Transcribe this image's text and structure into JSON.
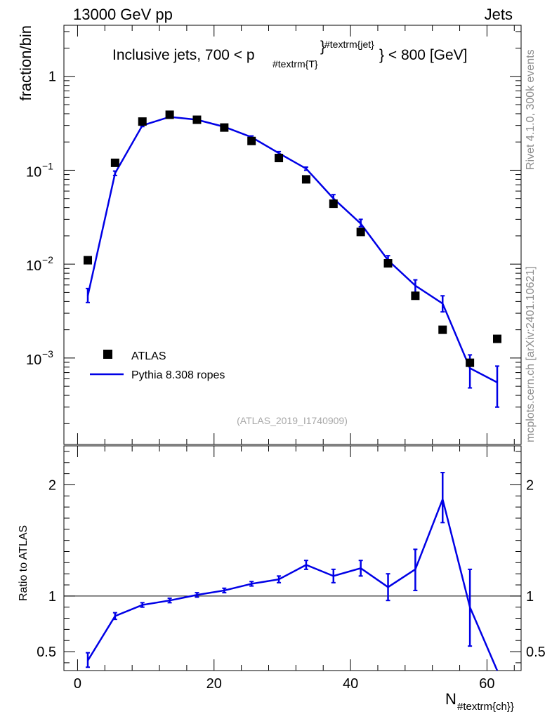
{
  "header": {
    "left": "13000 GeV pp",
    "right": "Jets"
  },
  "side_text": {
    "rivet": "Rivet 4.1.0,  300k events",
    "mcplots": "mcplots.cern.ch [arXiv:2401.10621]"
  },
  "colors": {
    "mc": "#0000e6",
    "data": "#000000",
    "watermark": "#a8a8a8"
  },
  "chart_data": [
    {
      "type": "scatter",
      "panel": "main",
      "title_parts": {
        "pre": "Inclusive jets, 700 < p",
        "sub": "#textrm{T}",
        "sup": "#textrm{jet}",
        "post": "} < 800 [GeV]"
      },
      "ylabel": "fraction/bin",
      "yscale": "log",
      "ylim": [
        0.00012,
        3.5
      ],
      "xlim": [
        -2,
        65
      ],
      "y_tick_labels": [
        "1",
        "10",
        "10",
        "10"
      ],
      "y_tick_exponents": [
        "",
        "−1",
        "−2",
        "−3"
      ],
      "watermark": "(ATLAS_2019_I1740909)",
      "legend": {
        "placement": "bottom-left",
        "data_label": "ATLAS",
        "mc_label": "Pythia 8.308 ropes"
      },
      "series": [
        {
          "name": "ATLAS",
          "style": "markers",
          "x": [
            1.5,
            5.5,
            9.5,
            13.5,
            17.5,
            21.5,
            25.5,
            29.5,
            33.5,
            37.5,
            41.5,
            45.5,
            49.5,
            53.5,
            57.5,
            61.5
          ],
          "y": [
            0.011,
            0.12,
            0.33,
            0.39,
            0.345,
            0.285,
            0.205,
            0.135,
            0.08,
            0.044,
            0.022,
            0.0102,
            0.0046,
            0.002,
            0.00089,
            0.0016
          ]
        },
        {
          "name": "Pythia 8.308 ropes",
          "style": "line",
          "x": [
            1.5,
            5.5,
            9.5,
            13.5,
            17.5,
            21.5,
            25.5,
            29.5,
            33.5,
            37.5,
            41.5,
            45.5,
            49.5,
            53.5,
            57.5,
            61.5
          ],
          "y": [
            0.0046,
            0.093,
            0.3,
            0.37,
            0.345,
            0.29,
            0.225,
            0.152,
            0.104,
            0.05,
            0.027,
            0.011,
            0.0059,
            0.0038,
            0.00078,
            0.00055
          ],
          "err_lo": [
            0.0039,
            0.088,
            0.292,
            0.362,
            0.339,
            0.285,
            0.219,
            0.147,
            0.1,
            0.046,
            0.025,
            0.0097,
            0.005,
            0.0031,
            0.00048,
            0.0003
          ],
          "err_hi": [
            0.0055,
            0.098,
            0.308,
            0.378,
            0.352,
            0.295,
            0.232,
            0.158,
            0.108,
            0.055,
            0.03,
            0.0123,
            0.0068,
            0.0046,
            0.00108,
            0.00082
          ]
        }
      ]
    },
    {
      "type": "line",
      "panel": "ratio",
      "ylabel": "Ratio to ATLAS",
      "ylim": [
        0.33,
        2.35
      ],
      "xlim": [
        -2,
        65
      ],
      "reference_line": 1,
      "y_tick_labels": [
        "0.5",
        "1",
        "2"
      ],
      "x_tick_labels": [
        "0",
        "20",
        "40",
        "60"
      ],
      "xlabel": {
        "main": "N",
        "sub": "#textrm{ch}}"
      },
      "series": [
        {
          "name": "Pythia 8.308 ropes",
          "x": [
            1.5,
            5.5,
            9.5,
            13.5,
            17.5,
            21.5,
            25.5,
            29.5,
            33.5,
            37.5,
            41.5,
            45.5,
            49.5,
            53.5,
            57.5,
            61.5
          ],
          "y": [
            0.42,
            0.82,
            0.92,
            0.96,
            1.01,
            1.05,
            1.11,
            1.15,
            1.28,
            1.18,
            1.25,
            1.08,
            1.24,
            1.87,
            0.9,
            0.3
          ],
          "err_lo": [
            0.36,
            0.79,
            0.9,
            0.94,
            0.99,
            1.03,
            1.09,
            1.12,
            1.24,
            1.12,
            1.18,
            0.96,
            1.05,
            1.66,
            0.55,
            0.3
          ],
          "err_hi": [
            0.49,
            0.85,
            0.94,
            0.98,
            1.03,
            1.07,
            1.13,
            1.18,
            1.32,
            1.24,
            1.32,
            1.2,
            1.42,
            2.11,
            1.24,
            0.3
          ]
        }
      ]
    }
  ]
}
